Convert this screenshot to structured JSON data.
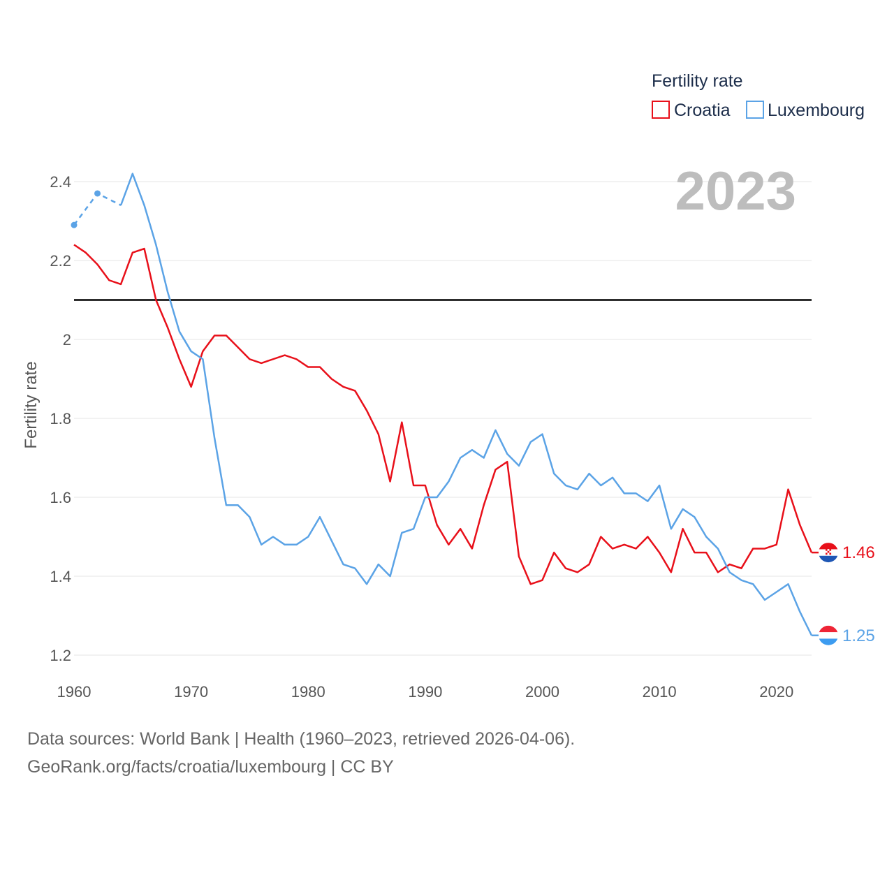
{
  "chart_data": {
    "type": "line",
    "ylabel": "Fertility rate",
    "legend": {
      "title": "Fertility rate",
      "position": "top-right"
    },
    "year_label": "2023",
    "ylim": [
      1.2,
      2.45
    ],
    "xlim": [
      1960,
      2023
    ],
    "y_ticks": [
      1.2,
      1.4,
      1.6,
      1.8,
      2,
      2.2,
      2.4
    ],
    "x_ticks": [
      1960,
      1970,
      1980,
      1990,
      2000,
      2010,
      2020
    ],
    "reference_line": 2.1,
    "series": [
      {
        "name": "Croatia",
        "color": "#e8101a",
        "end_label": "1.46",
        "flag": "croatia-flag",
        "x": [
          1960,
          1961,
          1962,
          1963,
          1964,
          1965,
          1966,
          1967,
          1968,
          1969,
          1970,
          1971,
          1972,
          1973,
          1974,
          1975,
          1976,
          1977,
          1978,
          1979,
          1980,
          1981,
          1982,
          1983,
          1984,
          1985,
          1986,
          1987,
          1988,
          1989,
          1990,
          1991,
          1992,
          1993,
          1994,
          1995,
          1996,
          1997,
          1998,
          1999,
          2000,
          2001,
          2002,
          2003,
          2004,
          2005,
          2006,
          2007,
          2008,
          2009,
          2010,
          2011,
          2012,
          2013,
          2014,
          2015,
          2016,
          2017,
          2018,
          2019,
          2020,
          2021,
          2022,
          2023
        ],
        "values": [
          2.24,
          2.22,
          2.19,
          2.15,
          2.14,
          2.22,
          2.23,
          2.1,
          2.03,
          1.95,
          1.88,
          1.97,
          2.01,
          2.01,
          1.98,
          1.95,
          1.94,
          1.95,
          1.96,
          1.95,
          1.93,
          1.93,
          1.9,
          1.88,
          1.87,
          1.82,
          1.76,
          1.64,
          1.79,
          1.63,
          1.63,
          1.53,
          1.48,
          1.52,
          1.47,
          1.58,
          1.67,
          1.69,
          1.45,
          1.38,
          1.39,
          1.46,
          1.42,
          1.41,
          1.43,
          1.5,
          1.47,
          1.48,
          1.47,
          1.5,
          1.46,
          1.41,
          1.52,
          1.46,
          1.46,
          1.41,
          1.43,
          1.42,
          1.47,
          1.47,
          1.48,
          1.62,
          1.53,
          1.46
        ]
      },
      {
        "name": "Luxembourg",
        "color": "#5ba3e6",
        "end_label": "1.25",
        "flag": "luxembourg-flag",
        "dashed_until": 1964,
        "marker_years": [
          1960,
          1962
        ],
        "x": [
          1960,
          1962,
          1964,
          1965,
          1966,
          1967,
          1968,
          1969,
          1970,
          1971,
          1972,
          1973,
          1974,
          1975,
          1976,
          1977,
          1978,
          1979,
          1980,
          1981,
          1982,
          1983,
          1984,
          1985,
          1986,
          1987,
          1988,
          1989,
          1990,
          1991,
          1992,
          1993,
          1994,
          1995,
          1996,
          1997,
          1998,
          1999,
          2000,
          2001,
          2002,
          2003,
          2004,
          2005,
          2006,
          2007,
          2008,
          2009,
          2010,
          2011,
          2012,
          2013,
          2014,
          2015,
          2016,
          2017,
          2018,
          2019,
          2020,
          2021,
          2022,
          2023
        ],
        "values": [
          2.29,
          2.37,
          2.34,
          2.42,
          2.34,
          2.24,
          2.12,
          2.02,
          1.97,
          1.95,
          1.75,
          1.58,
          1.58,
          1.55,
          1.48,
          1.5,
          1.48,
          1.48,
          1.5,
          1.55,
          1.49,
          1.43,
          1.42,
          1.38,
          1.43,
          1.4,
          1.51,
          1.52,
          1.6,
          1.6,
          1.64,
          1.7,
          1.72,
          1.7,
          1.77,
          1.71,
          1.68,
          1.74,
          1.76,
          1.66,
          1.63,
          1.62,
          1.66,
          1.63,
          1.65,
          1.61,
          1.61,
          1.59,
          1.63,
          1.52,
          1.57,
          1.55,
          1.5,
          1.47,
          1.41,
          1.39,
          1.38,
          1.34,
          1.36,
          1.38,
          1.31,
          1.25
        ]
      }
    ]
  },
  "footer": {
    "line1": "Data sources: World Bank | Health (1960–2023, retrieved 2026-04-06).",
    "line2": "GeoRank.org/facts/croatia/luxembourg | CC BY"
  }
}
